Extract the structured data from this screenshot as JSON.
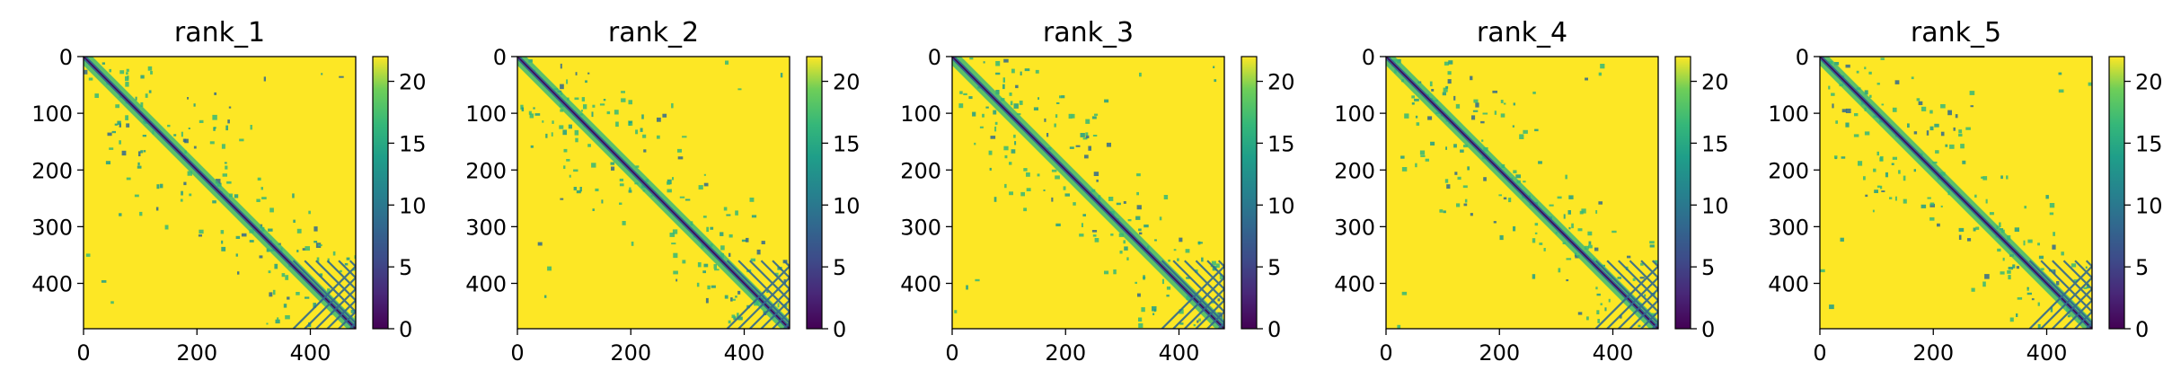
{
  "chart_data": [
    {
      "type": "heatmap",
      "title": "rank_1",
      "x_ticks": [
        0,
        200,
        400
      ],
      "y_ticks": [
        0,
        100,
        200,
        300,
        400
      ],
      "xlim": [
        0,
        480
      ],
      "ylim": [
        480,
        0
      ],
      "colorbar": {
        "min": 0,
        "max": 22,
        "ticks": [
          0,
          5,
          10,
          15,
          20
        ],
        "colormap": "viridis"
      }
    },
    {
      "type": "heatmap",
      "title": "rank_2",
      "x_ticks": [
        0,
        200,
        400
      ],
      "y_ticks": [
        0,
        100,
        200,
        300,
        400
      ],
      "xlim": [
        0,
        480
      ],
      "ylim": [
        480,
        0
      ],
      "colorbar": {
        "min": 0,
        "max": 22,
        "ticks": [
          0,
          5,
          10,
          15,
          20
        ],
        "colormap": "viridis"
      }
    },
    {
      "type": "heatmap",
      "title": "rank_3",
      "x_ticks": [
        0,
        200,
        400
      ],
      "y_ticks": [
        0,
        100,
        200,
        300,
        400
      ],
      "xlim": [
        0,
        480
      ],
      "ylim": [
        480,
        0
      ],
      "colorbar": {
        "min": 0,
        "max": 22,
        "ticks": [
          0,
          5,
          10,
          15,
          20
        ],
        "colormap": "viridis"
      }
    },
    {
      "type": "heatmap",
      "title": "rank_4",
      "x_ticks": [
        0,
        200,
        400
      ],
      "y_ticks": [
        0,
        100,
        200,
        300,
        400
      ],
      "xlim": [
        0,
        480
      ],
      "ylim": [
        480,
        0
      ],
      "colorbar": {
        "min": 0,
        "max": 22,
        "ticks": [
          0,
          5,
          10,
          15,
          20
        ],
        "colormap": "viridis"
      }
    },
    {
      "type": "heatmap",
      "title": "rank_5",
      "x_ticks": [
        0,
        200,
        400
      ],
      "y_ticks": [
        0,
        100,
        200,
        300,
        400
      ],
      "xlim": [
        0,
        480
      ],
      "ylim": [
        480,
        0
      ],
      "colorbar": {
        "min": 0,
        "max": 22,
        "ticks": [
          0,
          5,
          10,
          15,
          20
        ],
        "colormap": "viridis"
      }
    }
  ],
  "colors": {
    "far": "#fde725",
    "mid": "#35b779",
    "near": "#31688e",
    "close": "#440154"
  }
}
